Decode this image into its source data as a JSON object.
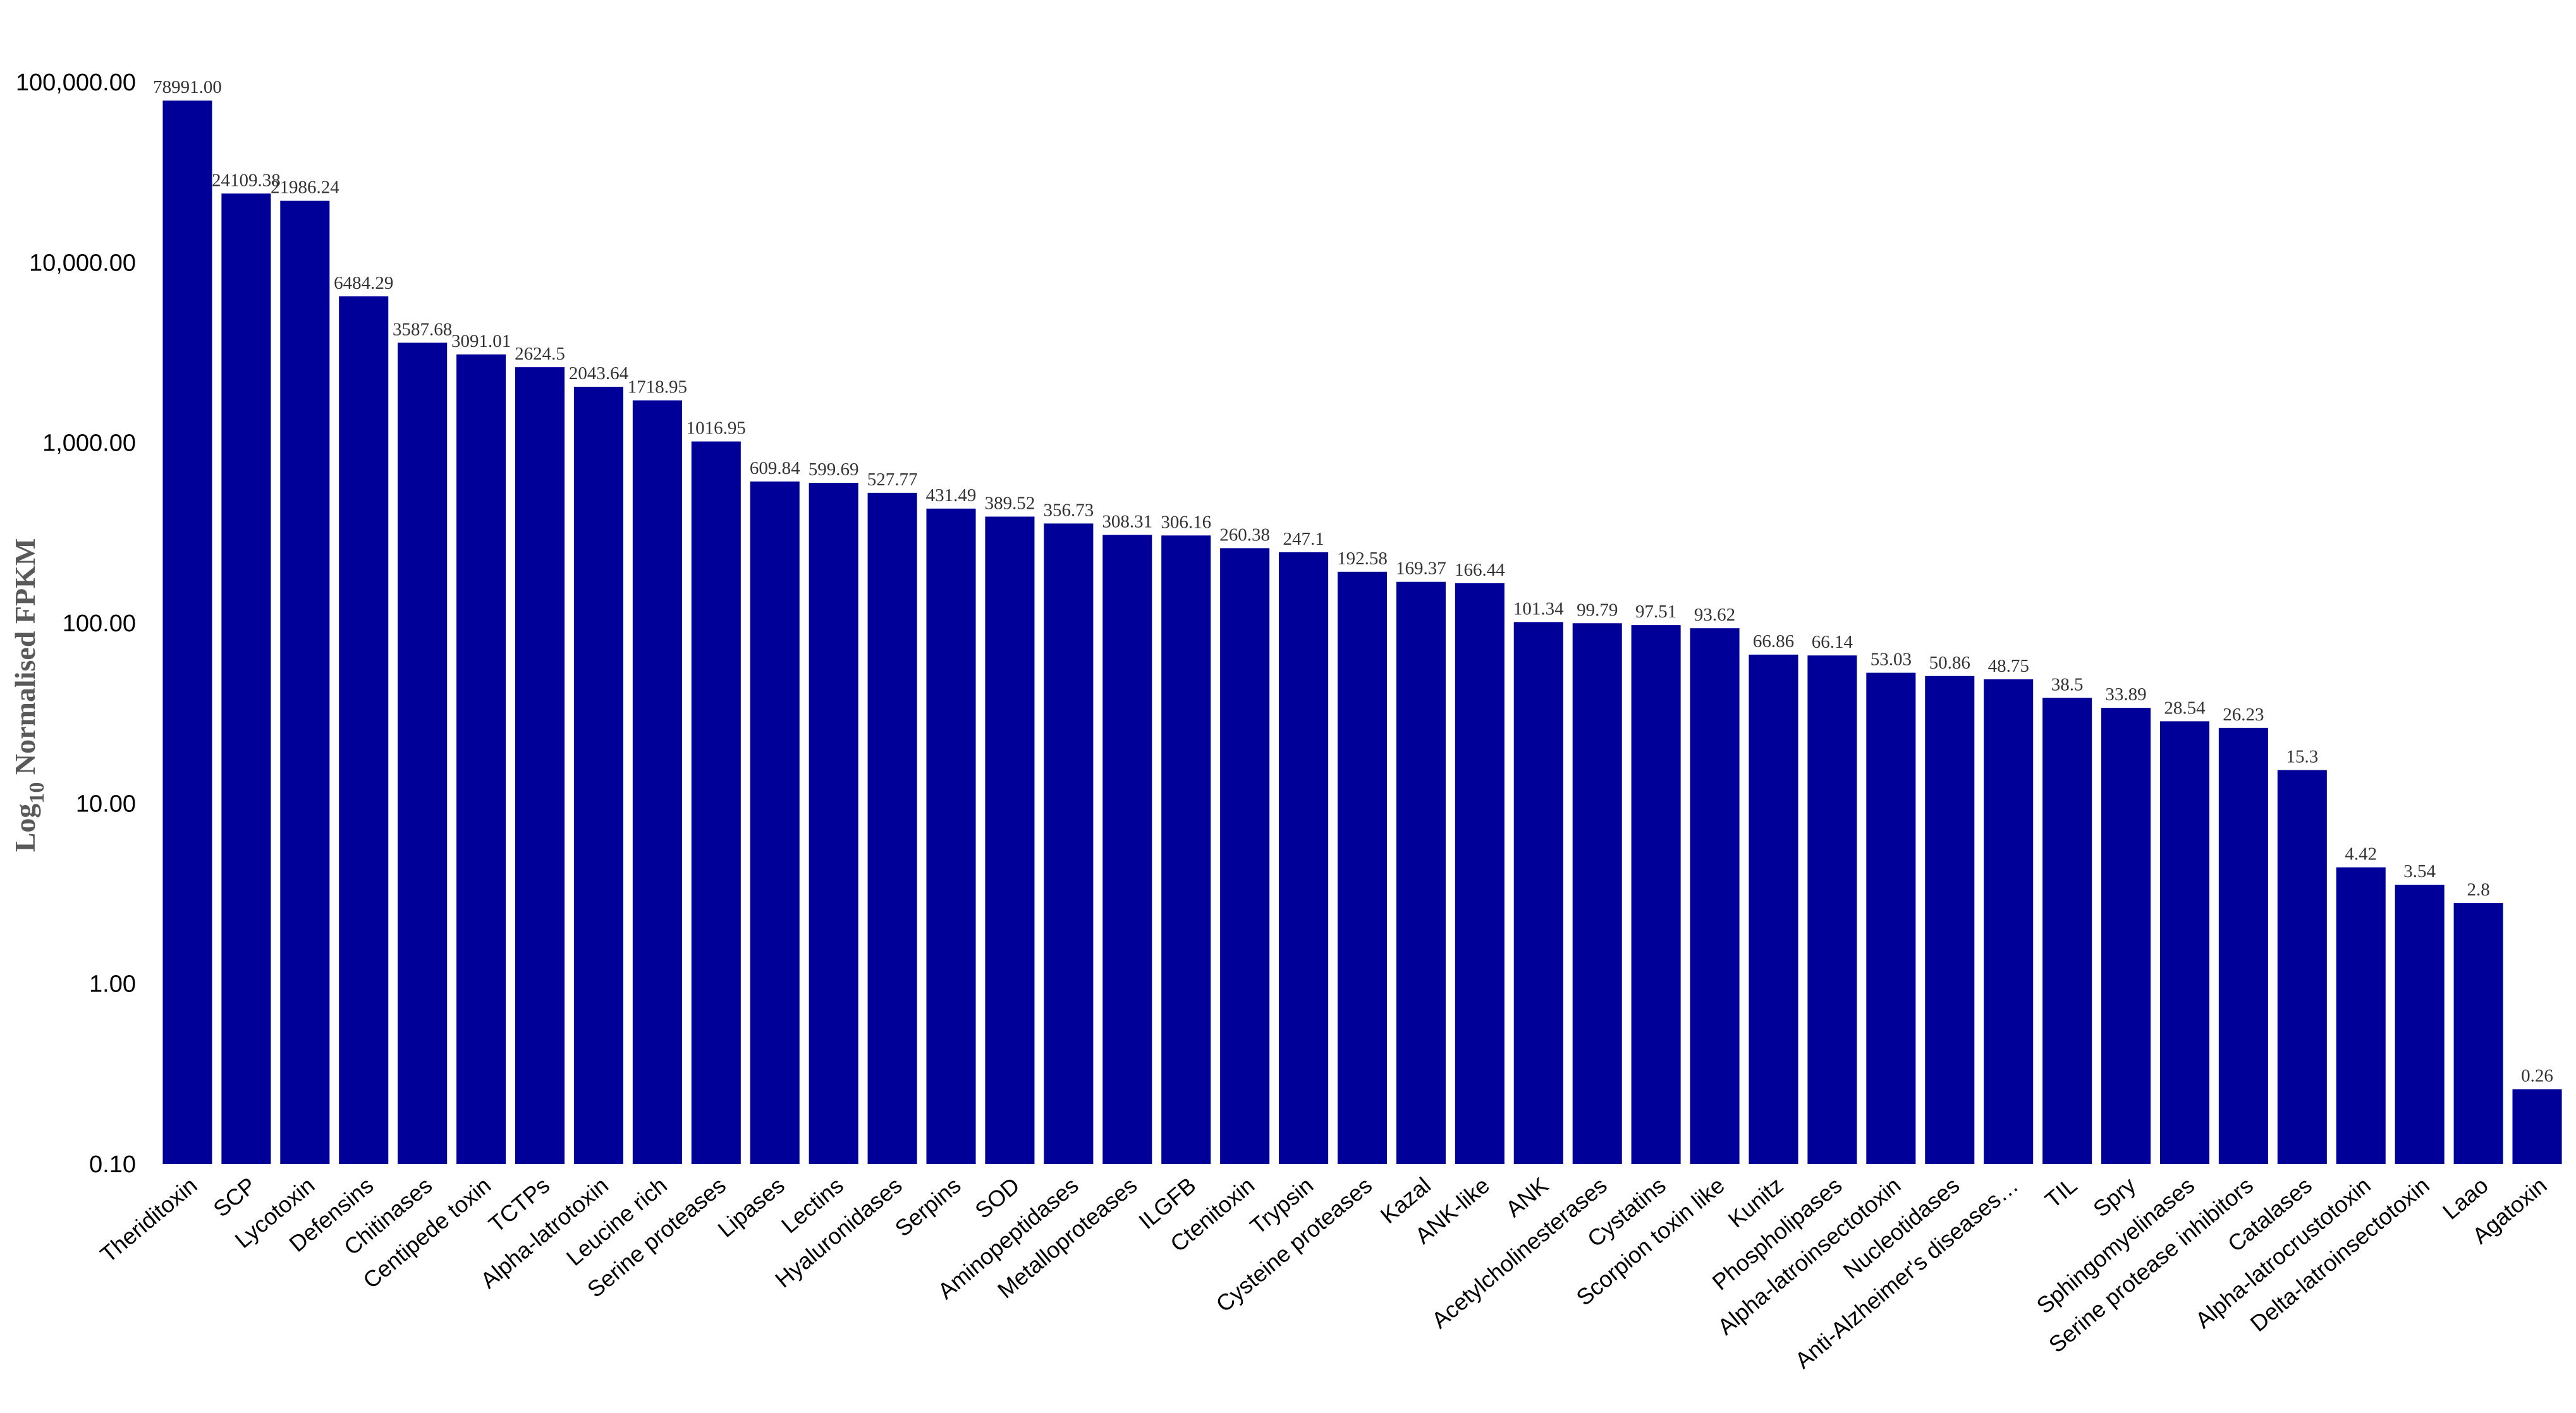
{
  "chart_data": {
    "type": "bar",
    "title": "",
    "xlabel": "",
    "ylabel": {
      "prefix": "Log",
      "subscript": "10",
      "suffix": " Normalised FPKM"
    },
    "yscale": "log",
    "ylim": [
      0.1,
      100000
    ],
    "yticks": [
      {
        "value": 0.1,
        "label": "0.10"
      },
      {
        "value": 1,
        "label": "1.00"
      },
      {
        "value": 10,
        "label": "10.00"
      },
      {
        "value": 100,
        "label": "100.00"
      },
      {
        "value": 1000,
        "label": "1,000.00"
      },
      {
        "value": 10000,
        "label": "10,000.00"
      },
      {
        "value": 100000,
        "label": "100,000.00"
      }
    ],
    "grid": false,
    "legend": "none",
    "bar_color": "#000099",
    "categories": [
      "Theriditoxin",
      "SCP",
      "Lycotoxin",
      "Defensins",
      "Chitinases",
      "Centipede toxin",
      "TCTPs",
      "Alpha-latrotoxin",
      "Leucine rich",
      "Serine proteases",
      "Lipases",
      "Lectins",
      "Hyaluronidases",
      "Serpins",
      "SOD",
      "Aminopeptidases",
      "Metalloproteases",
      "ILGFB",
      "Ctenitoxin",
      "Trypsin",
      "Cysteine proteases",
      "Kazal",
      "ANK-like",
      "ANK",
      "Acetylcholinesterases",
      "Cystatins",
      "Scorpion toxin like",
      "Kunitz",
      "Phospholipases",
      "Alpha-latroinsectotoxin",
      "Nucleotidases",
      "Anti-Alzheimer's diseases…",
      "TIL",
      "Spry",
      "Sphingomyelinases",
      "Serine protease inhibitors",
      "Catalases",
      "Alpha-latrocrustotoxin",
      "Delta-latroinsectotoxin",
      "Laao",
      "Agatoxin"
    ],
    "values": [
      78991.0,
      24109.38,
      21986.24,
      6484.29,
      3587.68,
      3091.01,
      2624.5,
      2043.64,
      1718.95,
      1016.95,
      609.84,
      599.69,
      527.77,
      431.49,
      389.52,
      356.73,
      308.31,
      306.16,
      260.38,
      247.1,
      192.58,
      169.37,
      166.44,
      101.34,
      99.79,
      97.51,
      93.62,
      66.86,
      66.14,
      53.03,
      50.86,
      48.75,
      38.5,
      33.89,
      28.54,
      26.23,
      15.3,
      4.42,
      3.54,
      2.8,
      0.26
    ],
    "data_labels": [
      "78991.00",
      "24109.38",
      "21986.24",
      "6484.29",
      "3587.68",
      "3091.01",
      "2624.5",
      "2043.64",
      "1718.95",
      "1016.95",
      "609.84",
      "599.69",
      "527.77",
      "431.49",
      "389.52",
      "356.73",
      "308.31",
      "306.16",
      "260.38",
      "247.1",
      "192.58",
      "169.37",
      "166.44",
      "101.34",
      "99.79",
      "97.51",
      "93.62",
      "66.86",
      "66.14",
      "53.03",
      "50.86",
      "48.75",
      "38.5",
      "33.89",
      "28.54",
      "26.23",
      "15.3",
      "4.42",
      "3.54",
      "2.8",
      "0.26"
    ]
  }
}
